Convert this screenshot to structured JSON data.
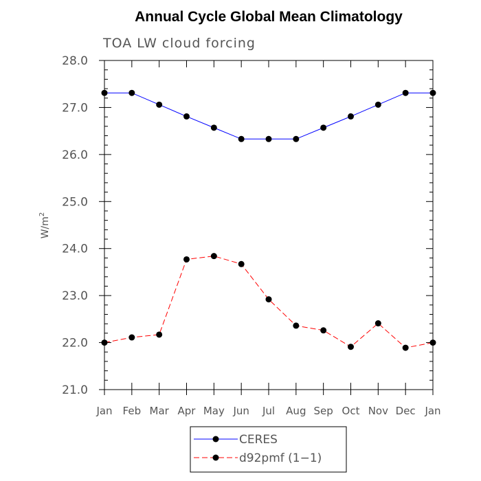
{
  "chart_data": {
    "type": "line",
    "title": "Annual Cycle Global Mean Climatology",
    "subtitle": "TOA LW cloud forcing",
    "ylabel": "W/m",
    "ylabel_sup": "2",
    "xlabel": "",
    "categories": [
      "Jan",
      "Feb",
      "Mar",
      "Apr",
      "May",
      "Jun",
      "Jul",
      "Aug",
      "Sep",
      "Oct",
      "Nov",
      "Dec",
      "Jan"
    ],
    "ylim": [
      21.0,
      28.0
    ],
    "yticks": [
      "21.0",
      "22.0",
      "23.0",
      "24.0",
      "25.0",
      "26.0",
      "27.0",
      "28.0"
    ],
    "grid": false,
    "legend_position": "bottom-center",
    "series": [
      {
        "name": "CERES",
        "color": "#0000ff",
        "style": "solid",
        "values": [
          27.31,
          27.31,
          27.06,
          26.81,
          26.57,
          26.33,
          26.33,
          26.33,
          26.57,
          26.81,
          27.06,
          27.31,
          27.31
        ]
      },
      {
        "name": "d92pmf (1−1)",
        "color": "#ff0000",
        "style": "dashed",
        "values": [
          22.0,
          22.11,
          22.17,
          23.77,
          23.84,
          23.67,
          22.92,
          22.36,
          22.26,
          21.91,
          22.41,
          21.89,
          22.0
        ]
      }
    ]
  }
}
